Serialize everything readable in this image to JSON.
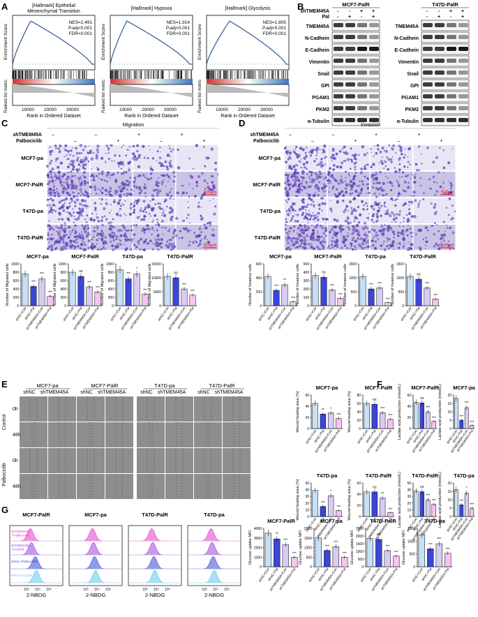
{
  "panels": {
    "A": "A",
    "B": "B",
    "C": "C",
    "D": "D",
    "E": "E",
    "F": "F",
    "G": "G"
  },
  "gsea": [
    {
      "title": "[Hallmark] Epithelial\nMesenchymal Transition",
      "nes": "NES=2.491",
      "padj": "P.adj<0.001",
      "fdr": "FDR<0.001"
    },
    {
      "title": "[Hallmark] Hypoxia",
      "nes": "NES=1.914",
      "padj": "P.adj<0.001",
      "fdr": "FDR<0.001"
    },
    {
      "title": "[Hallmark] Glycolysis",
      "nes": "NES=1.805",
      "padj": "P.adj<0.001",
      "fdr": "FDR<0.001"
    }
  ],
  "gsea_labels": {
    "y_es": "Enrichment Score",
    "y_rank": "Ranked list metric",
    "x": "Rank in Ordered Dataset",
    "ticks_x": [
      "10000",
      "20000",
      "30000"
    ],
    "ticks_es": [
      "0.6",
      "0.4",
      "0.2",
      "0.0"
    ],
    "ticks_rank": [
      "4",
      "2",
      "0",
      "-2"
    ]
  },
  "western": {
    "shTMEM45A": "shTMEM45A",
    "pal": "Pal",
    "left_title": "MCF7-PalR",
    "right_title": "T47D-PalR",
    "signs_sh": [
      "-",
      "-",
      "+",
      "+"
    ],
    "signs_pal": [
      "-",
      "+",
      "-",
      "+"
    ],
    "proteins": [
      "TMEM45A",
      "N-Cadhein",
      "E-Cadhein",
      "Vimentin",
      "Snail",
      "GPI",
      "PGAM1",
      "PKM2",
      "α-Tubulin"
    ]
  },
  "migration": {
    "title": "Migration",
    "sh": "shTMEM45A",
    "palbo": "Palbociclib",
    "signs_sh": [
      "–",
      "–",
      "+",
      "+"
    ],
    "signs_pal": [
      "–",
      "+",
      "–",
      "+"
    ],
    "rows": [
      "MCF7-pa",
      "MCF7-PalR",
      "T47D-pa",
      "T47D-PalR"
    ],
    "scale": "500μm"
  },
  "invasion": {
    "title": "Invasion",
    "sh": "shTMEM45A",
    "palbo": "Palbociclib",
    "signs_sh": [
      "–",
      "–",
      "+",
      "+"
    ],
    "signs_pal": [
      "–",
      "+",
      "–",
      "+"
    ],
    "rows": [
      "MCF7-pa",
      "MCF7-PalR",
      "T47D-pa",
      "T47D-PalR"
    ],
    "scale": "500μm"
  },
  "wound": {
    "groups": [
      "MCF7-pa",
      "MCF7-PalR",
      "T47D-pa",
      "T47D-PalR"
    ],
    "sub": [
      "shNC",
      "shTMEM45A"
    ],
    "conditions": [
      "Control",
      "Palbociclib"
    ],
    "times": [
      "0h",
      "48h"
    ]
  },
  "categories": [
    "shNC+Con",
    "shNC+Pal",
    "shTMEM45A+Con",
    "shTMEM45A+Pal"
  ],
  "bar_colors": [
    "#c5e0f7",
    "#3b47d8",
    "#d9ccf4",
    "#f7c5ef"
  ],
  "chart_data": [
    {
      "type": "bar",
      "title": "MCF7-pa",
      "ylabel": "Number of Migrated cells",
      "ylim": [
        0,
        1000
      ],
      "yticks": [
        "0",
        "200",
        "400",
        "600",
        "800",
        "1000"
      ],
      "values": [
        760,
        460,
        640,
        230
      ],
      "sig": [
        "",
        "***",
        "***",
        "***"
      ]
    },
    {
      "type": "bar",
      "title": "MCF7-PalR",
      "ylabel": "Number of Migrated cells",
      "ylim": [
        0,
        1000
      ],
      "yticks": [
        "0",
        "200",
        "400",
        "600",
        "800",
        "1000"
      ],
      "values": [
        800,
        700,
        450,
        330
      ],
      "sig": [
        "",
        "ns",
        "***",
        "***"
      ]
    },
    {
      "type": "bar",
      "title": "T47D-pa",
      "ylabel": "Number of Migrated cells",
      "ylim": [
        0,
        1000
      ],
      "yticks": [
        "0",
        "200",
        "400",
        "600",
        "800",
        "1000"
      ],
      "values": [
        860,
        640,
        760,
        280
      ],
      "sig": [
        "",
        "***",
        "*",
        "***"
      ]
    },
    {
      "type": "bar",
      "title": "T47D-PalR",
      "ylabel": "Number of Migrated cells",
      "ylim": [
        0,
        15000
      ],
      "yticks": [
        "0",
        "5000",
        "10000",
        "15000"
      ],
      "values": [
        10500,
        10000,
        6000,
        3800
      ],
      "sig": [
        "",
        "ns",
        "***",
        "***"
      ]
    },
    {
      "type": "bar",
      "title": "MCF7-pa",
      "ylabel": "Number of Invasive cells",
      "ylim": [
        0,
        600
      ],
      "yticks": [
        "0",
        "200",
        "400",
        "600"
      ],
      "values": [
        420,
        220,
        300,
        60
      ],
      "sig": [
        "",
        "***",
        "**",
        "***"
      ]
    },
    {
      "type": "bar",
      "title": "MCF7-PalR",
      "ylabel": "Number of Invasive cells",
      "ylim": [
        0,
        500
      ],
      "yticks": [
        "0",
        "100",
        "200",
        "300",
        "400",
        "500"
      ],
      "values": [
        360,
        340,
        190,
        90
      ],
      "sig": [
        "",
        "ns",
        "***",
        "***"
      ]
    },
    {
      "type": "bar",
      "title": "T47D-pa",
      "ylabel": "Number of Invasive cells",
      "ylim": [
        0,
        1500
      ],
      "yticks": [
        "0",
        "500",
        "1000",
        "1500"
      ],
      "values": [
        1050,
        600,
        640,
        120
      ],
      "sig": [
        "",
        "***",
        "***",
        "***"
      ]
    },
    {
      "type": "bar",
      "title": "T47D-PalR",
      "ylabel": "Number of Invasive cells",
      "ylim": [
        0,
        1500
      ],
      "yticks": [
        "0",
        "500",
        "1000",
        "1500"
      ],
      "values": [
        1050,
        950,
        640,
        240
      ],
      "sig": [
        "",
        "ns",
        "***",
        "***"
      ]
    },
    {
      "type": "bar",
      "title": "MCF7-pa",
      "ylabel": "Wound healing area (%)",
      "ylim": [
        0,
        60
      ],
      "yticks": [
        "0",
        "20",
        "40",
        "60"
      ],
      "values": [
        45,
        26,
        28,
        18
      ],
      "sig": [
        "",
        "**",
        "*",
        "***"
      ]
    },
    {
      "type": "bar",
      "title": "MCF7-PalR",
      "ylabel": "Wound healing area (%)",
      "ylim": [
        0,
        80
      ],
      "yticks": [
        "0",
        "20",
        "40",
        "60",
        "80"
      ],
      "values": [
        60,
        58,
        38,
        22
      ],
      "sig": [
        "",
        "ns",
        "***",
        "***"
      ]
    },
    {
      "type": "bar",
      "title": "MCF7-PalR",
      "ylabel": "Lactate acid production (mmol/L)",
      "ylim": [
        0,
        60
      ],
      "yticks": [
        "0",
        "20",
        "40",
        "60"
      ],
      "values": [
        47,
        46,
        30,
        13
      ],
      "sig": [
        "",
        "ns",
        "***",
        "***"
      ]
    },
    {
      "type": "bar",
      "title": "MCF7-pa",
      "ylabel": "Lactate acid production (mmol/L)",
      "ylim": [
        0,
        20
      ],
      "yticks": [
        "0",
        "5",
        "10",
        "15",
        "20"
      ],
      "values": [
        18,
        5,
        12.5,
        2
      ],
      "sig": [
        "",
        "***",
        "***",
        "***"
      ]
    },
    {
      "type": "bar",
      "title": "T47D-pa",
      "ylabel": "Wound healing area (%)",
      "ylim": [
        0,
        50
      ],
      "yticks": [
        "0",
        "10",
        "20",
        "30",
        "40",
        "50"
      ],
      "values": [
        39,
        15,
        31,
        9
      ],
      "sig": [
        "",
        "***",
        "*",
        "***"
      ]
    },
    {
      "type": "bar",
      "title": "T47D-PalR",
      "ylabel": "Wound healing area (%)",
      "ylim": [
        0,
        60
      ],
      "yticks": [
        "0",
        "20",
        "40",
        "60"
      ],
      "values": [
        44,
        44,
        33,
        7
      ],
      "sig": [
        "",
        "ns",
        "**",
        "***"
      ]
    },
    {
      "type": "bar",
      "title": "T47D-PalR",
      "ylabel": "Lactate acid production (mmol/L)",
      "ylim": [
        0,
        50
      ],
      "yticks": [
        "0",
        "10",
        "20",
        "30",
        "40",
        "50"
      ],
      "values": [
        38,
        37,
        25,
        18
      ],
      "sig": [
        "",
        "ns",
        "***",
        "***"
      ]
    },
    {
      "type": "bar",
      "title": "T47D-pa",
      "ylabel": "Lactate acid production (mmol/L)",
      "ylim": [
        0,
        20
      ],
      "yticks": [
        "0",
        "5",
        "10",
        "15",
        "20"
      ],
      "values": [
        16,
        7,
        14,
        5
      ],
      "sig": [
        "",
        "***",
        "*",
        "***"
      ]
    },
    {
      "type": "bar",
      "title": "MCF7-PalR",
      "ylabel": "Glucose uptake MFI",
      "ylim": [
        0,
        4000
      ],
      "yticks": [
        "0",
        "1000",
        "2000",
        "3000",
        "4000"
      ],
      "values": [
        3500,
        2900,
        2300,
        1000
      ],
      "sig": [
        "",
        "**",
        "***",
        "***"
      ]
    },
    {
      "type": "bar",
      "title": "MCF7-pa",
      "ylabel": "Glucose uptake MFI",
      "ylim": [
        0,
        2000
      ],
      "yticks": [
        "0",
        "500",
        "1000",
        "1500",
        "2000"
      ],
      "values": [
        1500,
        850,
        1050,
        500
      ],
      "sig": [
        "",
        "***",
        "***",
        "***"
      ]
    },
    {
      "type": "bar",
      "title": "T47D-PalR",
      "ylabel": "Glucose uptake MFI",
      "ylim": [
        0,
        2500
      ],
      "yticks": [
        "0",
        "500",
        "1000",
        "1500",
        "2000",
        "2500"
      ],
      "values": [
        1850,
        1780,
        1050,
        700
      ],
      "sig": [
        "",
        "ns",
        "***",
        "***"
      ]
    },
    {
      "type": "bar",
      "title": "T47D-pa",
      "ylabel": "Glucose uptake MFI",
      "ylim": [
        0,
        1500
      ],
      "yticks": [
        "0",
        "500",
        "1000",
        "1500"
      ],
      "values": [
        1250,
        700,
        900,
        530
      ],
      "sig": [
        "",
        "***",
        "***",
        "***"
      ]
    }
  ],
  "flow": {
    "titles": [
      "MCF7-PalR",
      "MCF7-pa",
      "T47D-PalR",
      "T47D-pa"
    ],
    "xlabel": "2-NBDG",
    "ticks": [
      "10³",
      "10⁴",
      "10⁵"
    ],
    "legend": [
      "shNC+Control",
      "shNC+Palbociclib",
      "shTMEM45A\n+Control",
      "shTMEM45A\n+Palbociclib"
    ],
    "colors": [
      "#5fc8ee",
      "#3b47d8",
      "#9b47d8",
      "#e23ec7"
    ]
  }
}
